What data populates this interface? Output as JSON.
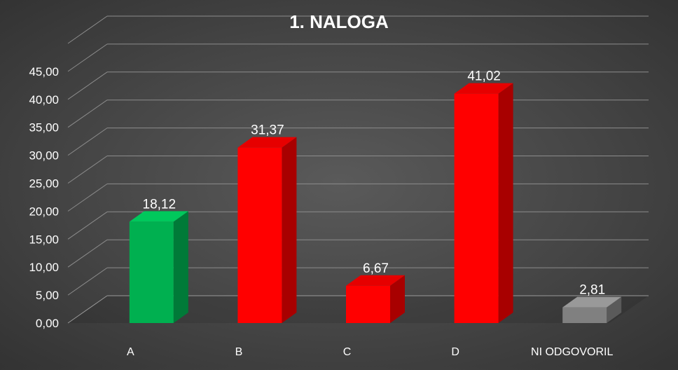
{
  "chart_data": {
    "type": "bar",
    "title": "1. NALOGA",
    "categories": [
      "A",
      "B",
      "C",
      "D",
      "NI ODGOVORIL"
    ],
    "values": [
      18.12,
      31.37,
      6.67,
      41.02,
      2.81
    ],
    "value_labels": [
      "18,12",
      "31,37",
      "6,67",
      "41,02",
      "2,81"
    ],
    "y_ticks": [
      "0,00",
      "5,00",
      "10,00",
      "15,00",
      "20,00",
      "25,00",
      "30,00",
      "35,00",
      "40,00",
      "45,00"
    ],
    "ylim": [
      0,
      45
    ],
    "grid": true,
    "bar_style": "3d",
    "colors": {
      "A": {
        "front": "#00b050",
        "side": "#007a38",
        "top": "#00c85c"
      },
      "B": {
        "front": "#ff0000",
        "side": "#a80000",
        "top": "#e60000"
      },
      "C": {
        "front": "#ff0000",
        "side": "#a80000",
        "top": "#e60000"
      },
      "D": {
        "front": "#ff0000",
        "side": "#a80000",
        "top": "#e60000"
      },
      "NI ODGOVORIL": {
        "front": "#808080",
        "side": "#5a5a5a",
        "top": "#999999"
      }
    }
  }
}
